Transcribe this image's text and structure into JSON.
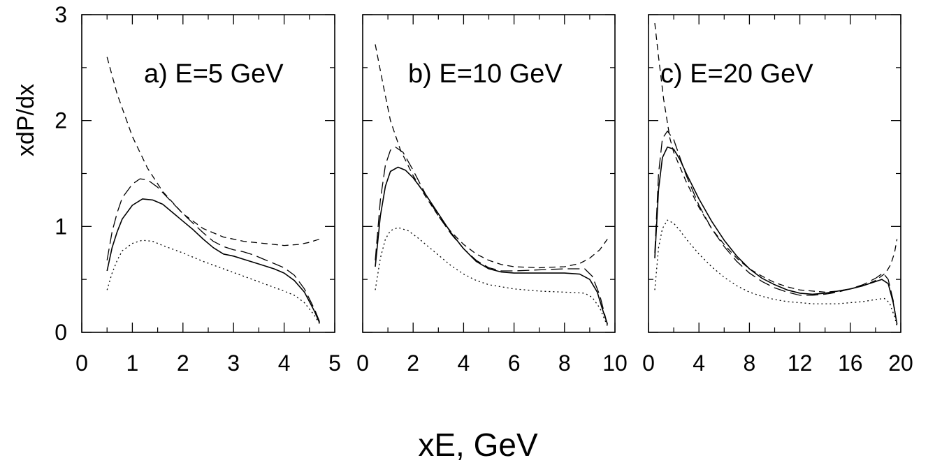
{
  "figure": {
    "ylabel": "xdP/dx",
    "xlabel": "xE, GeV"
  },
  "chart_data": [
    {
      "type": "line",
      "title": "a) E=5 GeV",
      "xlim": [
        0,
        5
      ],
      "ylim": [
        0,
        3
      ],
      "xticks": [
        "0",
        "1",
        "2",
        "3",
        "4",
        "5"
      ],
      "yticks": [
        "0",
        "1",
        "2",
        "3"
      ],
      "series": [
        {
          "style": "solid",
          "points": [
            [
              0.5,
              0.58
            ],
            [
              0.6,
              0.8
            ],
            [
              0.7,
              0.95
            ],
            [
              0.8,
              1.07
            ],
            [
              1.0,
              1.2
            ],
            [
              1.2,
              1.26
            ],
            [
              1.4,
              1.25
            ],
            [
              1.6,
              1.21
            ],
            [
              1.8,
              1.13
            ],
            [
              2.0,
              1.05
            ],
            [
              2.2,
              0.97
            ],
            [
              2.4,
              0.88
            ],
            [
              2.6,
              0.8
            ],
            [
              2.8,
              0.74
            ],
            [
              3.0,
              0.72
            ],
            [
              3.2,
              0.69
            ],
            [
              3.4,
              0.66
            ],
            [
              3.6,
              0.63
            ],
            [
              3.8,
              0.6
            ],
            [
              4.0,
              0.56
            ],
            [
              4.2,
              0.49
            ],
            [
              4.4,
              0.38
            ],
            [
              4.6,
              0.2
            ],
            [
              4.7,
              0.09
            ]
          ]
        },
        {
          "style": "long-dash",
          "points": [
            [
              0.5,
              0.68
            ],
            [
              0.6,
              0.95
            ],
            [
              0.7,
              1.13
            ],
            [
              0.8,
              1.27
            ],
            [
              1.0,
              1.4
            ],
            [
              1.15,
              1.45
            ],
            [
              1.3,
              1.44
            ],
            [
              1.5,
              1.37
            ],
            [
              1.7,
              1.27
            ],
            [
              2.0,
              1.12
            ],
            [
              2.2,
              1.03
            ],
            [
              2.4,
              0.94
            ],
            [
              2.6,
              0.86
            ],
            [
              2.8,
              0.81
            ],
            [
              3.0,
              0.78
            ],
            [
              3.2,
              0.76
            ],
            [
              3.4,
              0.73
            ],
            [
              3.6,
              0.69
            ],
            [
              3.8,
              0.65
            ],
            [
              4.0,
              0.61
            ],
            [
              4.2,
              0.54
            ],
            [
              4.4,
              0.41
            ],
            [
              4.6,
              0.22
            ],
            [
              4.7,
              0.1
            ]
          ]
        },
        {
          "style": "short-dash",
          "points": [
            [
              0.5,
              2.6
            ],
            [
              0.7,
              2.25
            ],
            [
              1.0,
              1.85
            ],
            [
              1.3,
              1.55
            ],
            [
              1.6,
              1.33
            ],
            [
              2.0,
              1.12
            ],
            [
              2.4,
              0.98
            ],
            [
              2.8,
              0.9
            ],
            [
              3.2,
              0.86
            ],
            [
              3.6,
              0.84
            ],
            [
              4.0,
              0.82
            ],
            [
              4.3,
              0.83
            ],
            [
              4.5,
              0.85
            ],
            [
              4.7,
              0.88
            ]
          ]
        },
        {
          "style": "dotted",
          "points": [
            [
              0.5,
              0.4
            ],
            [
              0.6,
              0.56
            ],
            [
              0.7,
              0.68
            ],
            [
              0.8,
              0.77
            ],
            [
              1.0,
              0.84
            ],
            [
              1.2,
              0.87
            ],
            [
              1.4,
              0.86
            ],
            [
              1.6,
              0.82
            ],
            [
              2.0,
              0.75
            ],
            [
              2.4,
              0.67
            ],
            [
              2.8,
              0.6
            ],
            [
              3.2,
              0.53
            ],
            [
              3.6,
              0.46
            ],
            [
              4.0,
              0.39
            ],
            [
              4.2,
              0.35
            ],
            [
              4.4,
              0.28
            ],
            [
              4.6,
              0.16
            ],
            [
              4.7,
              0.08
            ]
          ]
        }
      ]
    },
    {
      "type": "line",
      "title": "b) E=10 GeV",
      "xlim": [
        0,
        10
      ],
      "ylim": [
        0,
        3
      ],
      "xticks": [
        "0",
        "2",
        "4",
        "6",
        "8",
        "10"
      ],
      "yticks": [
        "0",
        "1",
        "2",
        "3"
      ],
      "series": [
        {
          "style": "solid",
          "points": [
            [
              0.5,
              0.62
            ],
            [
              0.7,
              1.1
            ],
            [
              0.9,
              1.38
            ],
            [
              1.1,
              1.52
            ],
            [
              1.4,
              1.56
            ],
            [
              1.7,
              1.53
            ],
            [
              2.0,
              1.46
            ],
            [
              2.5,
              1.3
            ],
            [
              3.0,
              1.12
            ],
            [
              3.5,
              0.94
            ],
            [
              4.0,
              0.79
            ],
            [
              4.5,
              0.67
            ],
            [
              5.0,
              0.6
            ],
            [
              5.5,
              0.57
            ],
            [
              6.0,
              0.56
            ],
            [
              7.0,
              0.56
            ],
            [
              8.0,
              0.56
            ],
            [
              8.6,
              0.55
            ],
            [
              9.0,
              0.5
            ],
            [
              9.3,
              0.38
            ],
            [
              9.5,
              0.22
            ],
            [
              9.7,
              0.08
            ]
          ]
        },
        {
          "style": "long-dash",
          "points": [
            [
              0.5,
              0.68
            ],
            [
              0.7,
              1.25
            ],
            [
              0.9,
              1.58
            ],
            [
              1.1,
              1.72
            ],
            [
              1.3,
              1.75
            ],
            [
              1.6,
              1.7
            ],
            [
              2.0,
              1.53
            ],
            [
              2.5,
              1.3
            ],
            [
              3.0,
              1.1
            ],
            [
              3.5,
              0.93
            ],
            [
              4.0,
              0.79
            ],
            [
              4.5,
              0.68
            ],
            [
              5.0,
              0.61
            ],
            [
              5.5,
              0.58
            ],
            [
              6.0,
              0.58
            ],
            [
              7.0,
              0.59
            ],
            [
              8.0,
              0.6
            ],
            [
              8.8,
              0.6
            ],
            [
              9.1,
              0.53
            ],
            [
              9.4,
              0.35
            ],
            [
              9.7,
              0.07
            ]
          ]
        },
        {
          "style": "short-dash",
          "points": [
            [
              0.5,
              2.72
            ],
            [
              0.8,
              2.35
            ],
            [
              1.1,
              2.0
            ],
            [
              1.5,
              1.72
            ],
            [
              2.0,
              1.48
            ],
            [
              2.5,
              1.28
            ],
            [
              3.0,
              1.1
            ],
            [
              3.5,
              0.95
            ],
            [
              4.0,
              0.83
            ],
            [
              4.5,
              0.74
            ],
            [
              5.0,
              0.68
            ],
            [
              5.5,
              0.64
            ],
            [
              6.0,
              0.62
            ],
            [
              7.0,
              0.61
            ],
            [
              8.0,
              0.62
            ],
            [
              8.6,
              0.65
            ],
            [
              9.0,
              0.7
            ],
            [
              9.4,
              0.78
            ],
            [
              9.7,
              0.88
            ]
          ]
        },
        {
          "style": "dotted",
          "points": [
            [
              0.5,
              0.4
            ],
            [
              0.7,
              0.7
            ],
            [
              0.9,
              0.88
            ],
            [
              1.1,
              0.96
            ],
            [
              1.4,
              0.99
            ],
            [
              1.8,
              0.96
            ],
            [
              2.2,
              0.89
            ],
            [
              3.0,
              0.73
            ],
            [
              3.5,
              0.63
            ],
            [
              4.0,
              0.55
            ],
            [
              4.5,
              0.49
            ],
            [
              5.0,
              0.45
            ],
            [
              6.0,
              0.41
            ],
            [
              7.0,
              0.39
            ],
            [
              8.0,
              0.38
            ],
            [
              8.8,
              0.37
            ],
            [
              9.1,
              0.33
            ],
            [
              9.4,
              0.23
            ],
            [
              9.7,
              0.06
            ]
          ]
        }
      ]
    },
    {
      "type": "line",
      "title": "c) E=20 GeV",
      "xlim": [
        0,
        20
      ],
      "ylim": [
        0,
        3
      ],
      "xticks": [
        "0",
        "4",
        "8",
        "12",
        "16",
        "20"
      ],
      "yticks": [
        "0",
        "1",
        "2",
        "3"
      ],
      "series": [
        {
          "style": "solid",
          "points": [
            [
              0.5,
              0.7
            ],
            [
              0.8,
              1.35
            ],
            [
              1.1,
              1.65
            ],
            [
              1.5,
              1.75
            ],
            [
              2.0,
              1.73
            ],
            [
              2.5,
              1.63
            ],
            [
              3.0,
              1.5
            ],
            [
              4.0,
              1.26
            ],
            [
              5.0,
              1.05
            ],
            [
              6.0,
              0.87
            ],
            [
              7.0,
              0.72
            ],
            [
              8.0,
              0.6
            ],
            [
              9.0,
              0.51
            ],
            [
              10.0,
              0.45
            ],
            [
              11.0,
              0.4
            ],
            [
              12.0,
              0.37
            ],
            [
              13.0,
              0.36
            ],
            [
              14.0,
              0.37
            ],
            [
              15.0,
              0.39
            ],
            [
              16.0,
              0.41
            ],
            [
              17.0,
              0.44
            ],
            [
              18.0,
              0.48
            ],
            [
              18.5,
              0.5
            ],
            [
              19.0,
              0.46
            ],
            [
              19.4,
              0.28
            ],
            [
              19.7,
              0.08
            ]
          ]
        },
        {
          "style": "long-dash",
          "points": [
            [
              0.5,
              0.75
            ],
            [
              0.8,
              1.5
            ],
            [
              1.1,
              1.83
            ],
            [
              1.5,
              1.9
            ],
            [
              2.0,
              1.82
            ],
            [
              2.5,
              1.65
            ],
            [
              3.0,
              1.48
            ],
            [
              4.0,
              1.2
            ],
            [
              5.0,
              0.98
            ],
            [
              6.0,
              0.81
            ],
            [
              7.0,
              0.67
            ],
            [
              8.0,
              0.56
            ],
            [
              9.0,
              0.48
            ],
            [
              10.0,
              0.42
            ],
            [
              11.0,
              0.38
            ],
            [
              12.0,
              0.35
            ],
            [
              13.0,
              0.35
            ],
            [
              14.0,
              0.36
            ],
            [
              15.0,
              0.38
            ],
            [
              16.0,
              0.41
            ],
            [
              17.0,
              0.45
            ],
            [
              18.0,
              0.51
            ],
            [
              18.6,
              0.56
            ],
            [
              19.0,
              0.5
            ],
            [
              19.4,
              0.3
            ],
            [
              19.7,
              0.07
            ]
          ]
        },
        {
          "style": "short-dash",
          "points": [
            [
              0.5,
              2.92
            ],
            [
              0.8,
              2.6
            ],
            [
              1.2,
              2.2
            ],
            [
              1.7,
              1.83
            ],
            [
              2.0,
              1.7
            ],
            [
              3.0,
              1.42
            ],
            [
              4.0,
              1.18
            ],
            [
              5.0,
              0.98
            ],
            [
              6.0,
              0.83
            ],
            [
              7.0,
              0.7
            ],
            [
              8.0,
              0.6
            ],
            [
              9.0,
              0.53
            ],
            [
              10.0,
              0.47
            ],
            [
              11.0,
              0.43
            ],
            [
              12.0,
              0.4
            ],
            [
              13.0,
              0.39
            ],
            [
              14.0,
              0.38
            ],
            [
              15.0,
              0.39
            ],
            [
              16.0,
              0.41
            ],
            [
              17.0,
              0.44
            ],
            [
              18.0,
              0.49
            ],
            [
              18.8,
              0.56
            ],
            [
              19.2,
              0.64
            ],
            [
              19.5,
              0.75
            ],
            [
              19.7,
              0.88
            ]
          ]
        },
        {
          "style": "dotted",
          "points": [
            [
              0.5,
              0.4
            ],
            [
              0.8,
              0.8
            ],
            [
              1.1,
              0.98
            ],
            [
              1.5,
              1.06
            ],
            [
              2.0,
              1.03
            ],
            [
              2.5,
              0.96
            ],
            [
              3.0,
              0.88
            ],
            [
              4.0,
              0.74
            ],
            [
              5.0,
              0.62
            ],
            [
              6.0,
              0.52
            ],
            [
              7.0,
              0.44
            ],
            [
              8.0,
              0.38
            ],
            [
              9.0,
              0.34
            ],
            [
              10.0,
              0.31
            ],
            [
              11.0,
              0.29
            ],
            [
              12.0,
              0.28
            ],
            [
              13.0,
              0.27
            ],
            [
              14.0,
              0.27
            ],
            [
              15.0,
              0.27
            ],
            [
              16.0,
              0.28
            ],
            [
              17.0,
              0.29
            ],
            [
              18.0,
              0.31
            ],
            [
              18.7,
              0.32
            ],
            [
              19.1,
              0.28
            ],
            [
              19.5,
              0.15
            ],
            [
              19.7,
              0.06
            ]
          ]
        }
      ]
    }
  ]
}
